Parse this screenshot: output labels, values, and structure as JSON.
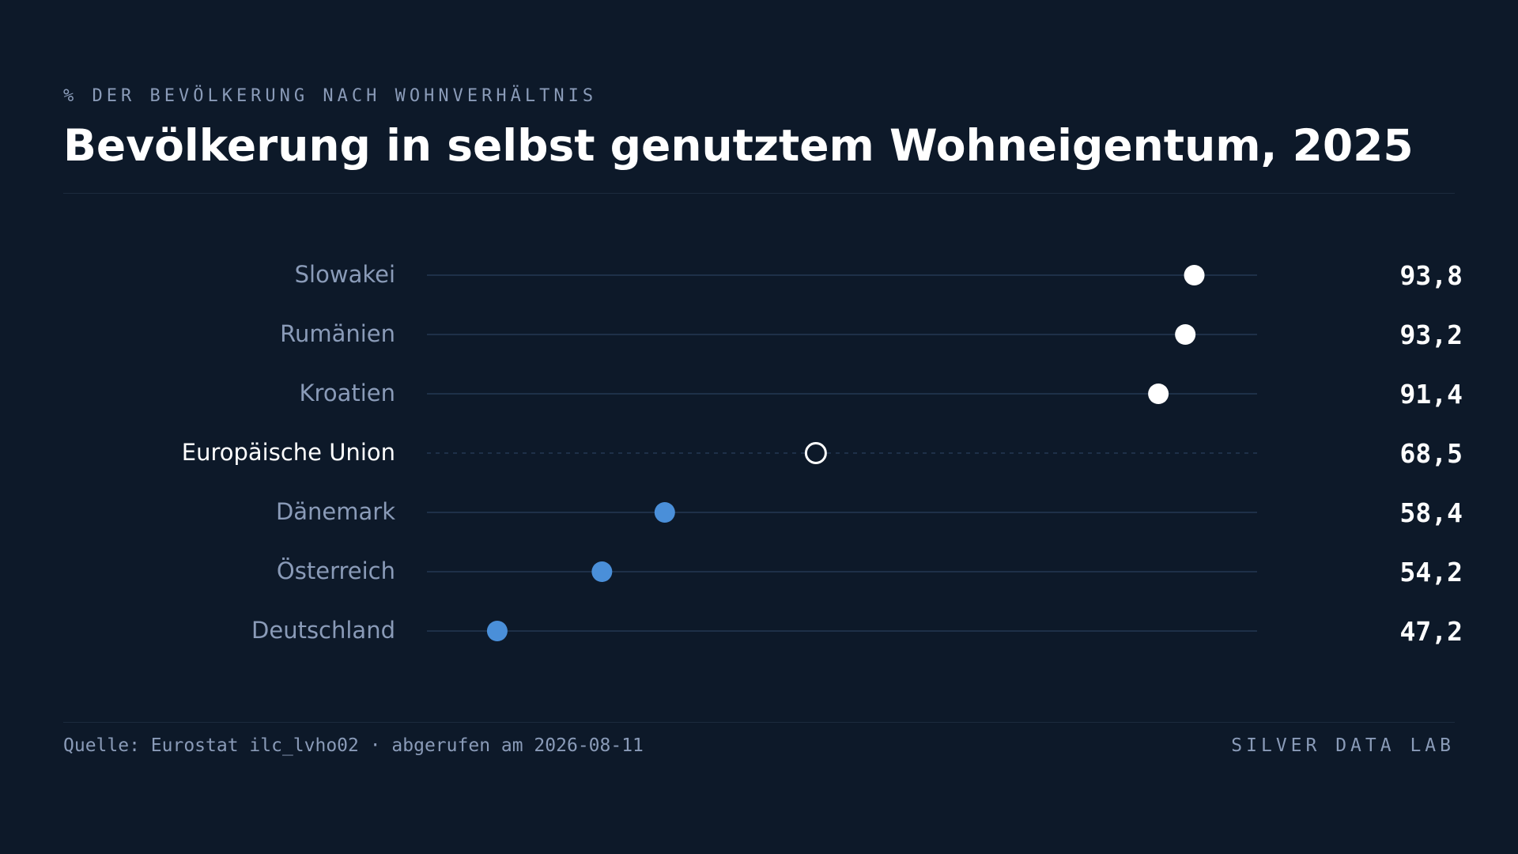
{
  "header": {
    "kicker": "% DER BEVÖLKERUNG NACH WOHNVERHÄLTNIS",
    "title": "Bevölkerung in selbst genutztem Wohneigentum, 2025"
  },
  "chart_data": {
    "type": "dot",
    "categories": [
      "Slowakei",
      "Rumänien",
      "Kroatien",
      "Europäische Union",
      "Dänemark",
      "Österreich",
      "Deutschland"
    ],
    "values": [
      93.8,
      93.2,
      91.4,
      68.5,
      58.4,
      54.2,
      47.2
    ],
    "value_labels": [
      "93,8",
      "93,2",
      "91,4",
      "68,5",
      "58,4",
      "54,2",
      "47,2"
    ],
    "reference_category": "Europäische Union",
    "xlim": [
      42.5,
      98
    ],
    "grid": false,
    "colors": {
      "above_eu": "#ffffff",
      "below_eu": "#4a8fd9",
      "reference": "#0d1929",
      "track": "#1e3048",
      "label": "#8a9bb8",
      "label_highlight": "#ffffff"
    }
  },
  "footer": {
    "source": "Quelle: Eurostat ilc_lvho02 · abgerufen am 2026-08-11",
    "brand": "SILVER DATA LAB"
  }
}
